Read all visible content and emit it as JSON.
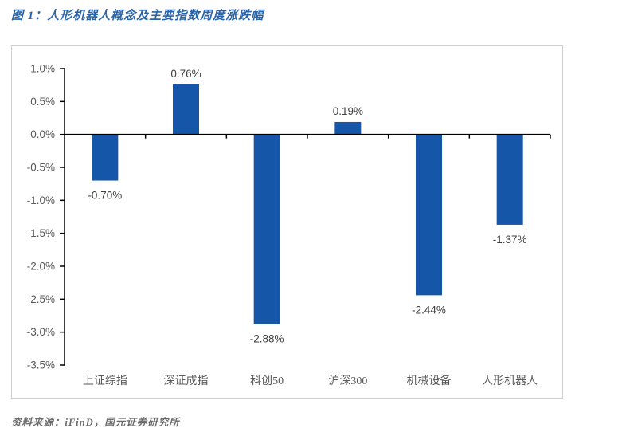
{
  "figure_title": "图 1：人形机器人概念及主要指数周度涨跌幅",
  "source_note": "资料来源：iFinD，国元证券研究所",
  "colors": {
    "bar": "#1556a8",
    "title_text": "#2a63a8",
    "axis_line": "#000000",
    "tick_label_text": "#595959",
    "value_label_text": "#3f3f3f",
    "category_label_text": "#595959",
    "source_text": "#6b6b6b"
  },
  "chart_data": {
    "type": "bar",
    "title": "人形机器人概念及主要指数周度涨跌幅",
    "categories": [
      "上证综指",
      "深证成指",
      "科创50",
      "沪深300",
      "机械设备",
      "人形机器人"
    ],
    "values": [
      -0.7,
      0.76,
      -2.88,
      0.19,
      -2.44,
      -1.37
    ],
    "value_labels": [
      "-0.70%",
      "0.76%",
      "-2.88%",
      "0.19%",
      "-2.44%",
      "-1.37%"
    ],
    "xlabel": "",
    "ylabel": "",
    "ylim": [
      -3.5,
      1.0
    ],
    "ytick_step": 0.5,
    "ytick_labels": [
      "1.0%",
      "0.5%",
      "0.0%",
      "-0.5%",
      "-1.0%",
      "-1.5%",
      "-2.0%",
      "-2.5%",
      "-3.0%",
      "-3.5%"
    ],
    "grid": false,
    "legend": "none",
    "baseline": 0
  }
}
